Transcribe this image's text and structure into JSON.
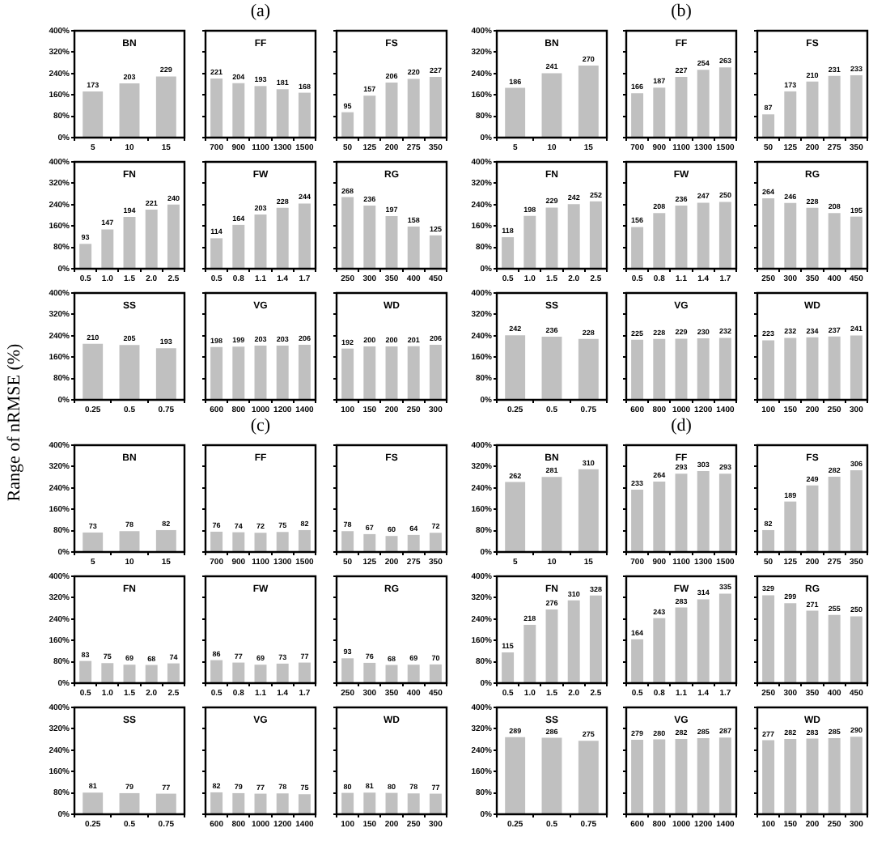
{
  "chart_data": [
    {
      "type": "bar",
      "title": "BN",
      "categories": [
        "5",
        "10",
        "15"
      ],
      "values": [
        173,
        203,
        229
      ],
      "color": "#c0c0c0",
      "data_labels": true,
      "ylim": [
        0,
        400
      ],
      "yticks": [
        {
          "value": 0,
          "label": "0%"
        },
        {
          "value": 80,
          "label": "80%"
        },
        {
          "value": 160,
          "label": "160%"
        },
        {
          "value": 240,
          "label": "240%"
        },
        {
          "value": 320,
          "label": "320%"
        },
        {
          "value": 400,
          "label": "400%"
        }
      ]
    },
    {
      "type": "bar",
      "title": "FF",
      "annotations": [
        "(a)"
      ],
      "categories": [
        "700",
        "900",
        "1100",
        "1300",
        "1500"
      ],
      "values": [
        221,
        204,
        193,
        181,
        168
      ],
      "color": "#c0c0c0",
      "data_labels": true,
      "tick_labels": "x",
      "ylim": [
        0,
        400
      ],
      "yticks": [
        {
          "value": 0,
          "label": null
        },
        {
          "value": 80,
          "label": null
        },
        {
          "value": 160,
          "label": null
        },
        {
          "value": 240,
          "label": null
        },
        {
          "value": 320,
          "label": null
        },
        {
          "value": 400,
          "label": null
        }
      ]
    },
    {
      "type": "bar",
      "title": "FS",
      "categories": [
        "50",
        "125",
        "200",
        "275",
        "350"
      ],
      "values": [
        95,
        157,
        206,
        220,
        227
      ],
      "color": "#c0c0c0",
      "data_labels": true,
      "tick_labels": "x",
      "ylim": [
        0,
        400
      ],
      "yticks": [
        {
          "value": 0,
          "label": null
        },
        {
          "value": 80,
          "label": null
        },
        {
          "value": 160,
          "label": null
        },
        {
          "value": 240,
          "label": null
        },
        {
          "value": 320,
          "label": null
        },
        {
          "value": 400,
          "label": null
        }
      ]
    },
    {
      "type": "bar",
      "title": "FN",
      "categories": [
        "0.5",
        "1.0",
        "1.5",
        "2.0",
        "2.5"
      ],
      "values": [
        93,
        147,
        194,
        221,
        240
      ],
      "color": "#c0c0c0",
      "data_labels": true,
      "ylim": [
        0,
        400
      ],
      "yticks": [
        {
          "value": 0,
          "label": "0%"
        },
        {
          "value": 80,
          "label": "80%"
        },
        {
          "value": 160,
          "label": "160%"
        },
        {
          "value": 240,
          "label": "240%"
        },
        {
          "value": 320,
          "label": "320%"
        },
        {
          "value": 400,
          "label": "400%"
        }
      ]
    },
    {
      "type": "bar",
      "title": "FW",
      "categories": [
        "0.5",
        "0.8",
        "1.1",
        "1.4",
        "1.7"
      ],
      "values": [
        114,
        164,
        203,
        228,
        244
      ],
      "color": "#c0c0c0",
      "data_labels": true,
      "tick_labels": "x",
      "ylim": [
        0,
        400
      ],
      "yticks": [
        {
          "value": 0,
          "label": null
        },
        {
          "value": 80,
          "label": null
        },
        {
          "value": 160,
          "label": null
        },
        {
          "value": 240,
          "label": null
        },
        {
          "value": 320,
          "label": null
        },
        {
          "value": 400,
          "label": null
        }
      ]
    },
    {
      "type": "bar",
      "title": "RG",
      "categories": [
        "250",
        "300",
        "350",
        "400",
        "450"
      ],
      "values": [
        268,
        236,
        197,
        158,
        125
      ],
      "color": "#c0c0c0",
      "data_labels": true,
      "tick_labels": "x",
      "ylim": [
        0,
        400
      ],
      "yticks": [
        {
          "value": 0,
          "label": null
        },
        {
          "value": 80,
          "label": null
        },
        {
          "value": 160,
          "label": null
        },
        {
          "value": 240,
          "label": null
        },
        {
          "value": 320,
          "label": null
        },
        {
          "value": 400,
          "label": null
        }
      ]
    },
    {
      "type": "bar",
      "title": "SS",
      "categories": [
        "0.25",
        "0.5",
        "0.75"
      ],
      "values": [
        210,
        205,
        193
      ],
      "color": "#c0c0c0",
      "data_labels": true,
      "ylim": [
        0,
        400
      ],
      "yticks": [
        {
          "value": 0,
          "label": "0%"
        },
        {
          "value": 80,
          "label": "80%"
        },
        {
          "value": 160,
          "label": "160%"
        },
        {
          "value": 240,
          "label": "240%"
        },
        {
          "value": 320,
          "label": "320%"
        },
        {
          "value": 400,
          "label": "400%"
        }
      ]
    },
    {
      "type": "bar",
      "title": "VG",
      "categories": [
        "600",
        "800",
        "1000",
        "1200",
        "1400"
      ],
      "values": [
        198,
        199,
        203,
        203,
        206
      ],
      "color": "#c0c0c0",
      "data_labels": true,
      "tick_labels": "x",
      "ylim": [
        0,
        400
      ],
      "yticks": [
        {
          "value": 0,
          "label": null
        },
        {
          "value": 80,
          "label": null
        },
        {
          "value": 160,
          "label": null
        },
        {
          "value": 240,
          "label": null
        },
        {
          "value": 320,
          "label": null
        },
        {
          "value": 400,
          "label": null
        }
      ]
    },
    {
      "type": "bar",
      "title": "WD",
      "categories": [
        "100",
        "150",
        "200",
        "250",
        "300"
      ],
      "values": [
        192,
        200,
        200,
        201,
        206
      ],
      "color": "#c0c0c0",
      "data_labels": true,
      "tick_labels": "x",
      "ylim": [
        0,
        400
      ],
      "yticks": [
        {
          "value": 0,
          "label": null
        },
        {
          "value": 80,
          "label": null
        },
        {
          "value": 160,
          "label": null
        },
        {
          "value": 240,
          "label": null
        },
        {
          "value": 320,
          "label": null
        },
        {
          "value": 400,
          "label": null
        }
      ]
    },
    {
      "type": "bar",
      "title": "BN",
      "categories": [
        "5",
        "10",
        "15"
      ],
      "values": [
        186,
        241,
        270
      ],
      "color": "#c0c0c0",
      "data_labels": true,
      "ylim": [
        0,
        400
      ],
      "yticks": [
        {
          "value": 0,
          "label": "0%"
        },
        {
          "value": 80,
          "label": "80%"
        },
        {
          "value": 160,
          "label": "160%"
        },
        {
          "value": 240,
          "label": "240%"
        },
        {
          "value": 320,
          "label": "320%"
        },
        {
          "value": 400,
          "label": "400%"
        }
      ]
    },
    {
      "type": "bar",
      "title": "FF",
      "annotations": [
        "(b)"
      ],
      "categories": [
        "700",
        "900",
        "1100",
        "1300",
        "1500"
      ],
      "values": [
        166,
        187,
        227,
        254,
        263
      ],
      "color": "#c0c0c0",
      "data_labels": true,
      "tick_labels": "x",
      "ylim": [
        0,
        400
      ],
      "yticks": [
        {
          "value": 0,
          "label": null
        },
        {
          "value": 80,
          "label": null
        },
        {
          "value": 160,
          "label": null
        },
        {
          "value": 240,
          "label": null
        },
        {
          "value": 320,
          "label": null
        },
        {
          "value": 400,
          "label": null
        }
      ]
    },
    {
      "type": "bar",
      "title": "FS",
      "categories": [
        "50",
        "125",
        "200",
        "275",
        "350"
      ],
      "values": [
        87,
        173,
        210,
        231,
        233
      ],
      "color": "#c0c0c0",
      "data_labels": true,
      "tick_labels": "x",
      "ylim": [
        0,
        400
      ],
      "yticks": [
        {
          "value": 0,
          "label": null
        },
        {
          "value": 80,
          "label": null
        },
        {
          "value": 160,
          "label": null
        },
        {
          "value": 240,
          "label": null
        },
        {
          "value": 320,
          "label": null
        },
        {
          "value": 400,
          "label": null
        }
      ]
    },
    {
      "type": "bar",
      "title": "FN",
      "categories": [
        "0.5",
        "1.0",
        "1.5",
        "2.0",
        "2.5"
      ],
      "values": [
        118,
        198,
        229,
        242,
        252
      ],
      "color": "#c0c0c0",
      "data_labels": true,
      "ylim": [
        0,
        400
      ],
      "yticks": [
        {
          "value": 0,
          "label": "0%"
        },
        {
          "value": 80,
          "label": "80%"
        },
        {
          "value": 160,
          "label": "160%"
        },
        {
          "value": 240,
          "label": "240%"
        },
        {
          "value": 320,
          "label": "320%"
        },
        {
          "value": 400,
          "label": "400%"
        }
      ]
    },
    {
      "type": "bar",
      "title": "FW",
      "categories": [
        "0.5",
        "0.8",
        "1.1",
        "1.4",
        "1.7"
      ],
      "values": [
        156,
        208,
        236,
        247,
        250
      ],
      "color": "#c0c0c0",
      "data_labels": true,
      "tick_labels": "x",
      "ylim": [
        0,
        400
      ],
      "yticks": [
        {
          "value": 0,
          "label": null
        },
        {
          "value": 80,
          "label": null
        },
        {
          "value": 160,
          "label": null
        },
        {
          "value": 240,
          "label": null
        },
        {
          "value": 320,
          "label": null
        },
        {
          "value": 400,
          "label": null
        }
      ]
    },
    {
      "type": "bar",
      "title": "RG",
      "categories": [
        "250",
        "300",
        "350",
        "400",
        "450"
      ],
      "values": [
        264,
        246,
        228,
        208,
        195
      ],
      "color": "#c0c0c0",
      "data_labels": true,
      "tick_labels": "x",
      "ylim": [
        0,
        400
      ],
      "yticks": [
        {
          "value": 0,
          "label": null
        },
        {
          "value": 80,
          "label": null
        },
        {
          "value": 160,
          "label": null
        },
        {
          "value": 240,
          "label": null
        },
        {
          "value": 320,
          "label": null
        },
        {
          "value": 400,
          "label": null
        }
      ]
    },
    {
      "type": "bar",
      "title": "SS",
      "categories": [
        "0.25",
        "0.5",
        "0.75"
      ],
      "values": [
        242,
        236,
        228
      ],
      "color": "#c0c0c0",
      "data_labels": true,
      "ylim": [
        0,
        400
      ],
      "yticks": [
        {
          "value": 0,
          "label": "0%"
        },
        {
          "value": 80,
          "label": "80%"
        },
        {
          "value": 160,
          "label": "160%"
        },
        {
          "value": 240,
          "label": "240%"
        },
        {
          "value": 320,
          "label": "320%"
        },
        {
          "value": 400,
          "label": "400%"
        }
      ]
    },
    {
      "type": "bar",
      "title": "VG",
      "categories": [
        "600",
        "800",
        "1000",
        "1200",
        "1400"
      ],
      "values": [
        225,
        228,
        229,
        230,
        232
      ],
      "color": "#c0c0c0",
      "data_labels": true,
      "tick_labels": "x",
      "ylim": [
        0,
        400
      ],
      "yticks": [
        {
          "value": 0,
          "label": null
        },
        {
          "value": 80,
          "label": null
        },
        {
          "value": 160,
          "label": null
        },
        {
          "value": 240,
          "label": null
        },
        {
          "value": 320,
          "label": null
        },
        {
          "value": 400,
          "label": null
        }
      ]
    },
    {
      "type": "bar",
      "title": "WD",
      "categories": [
        "100",
        "150",
        "200",
        "250",
        "300"
      ],
      "values": [
        223,
        232,
        234,
        237,
        241
      ],
      "color": "#c0c0c0",
      "data_labels": true,
      "tick_labels": "x",
      "ylim": [
        0,
        400
      ],
      "yticks": [
        {
          "value": 0,
          "label": null
        },
        {
          "value": 80,
          "label": null
        },
        {
          "value": 160,
          "label": null
        },
        {
          "value": 240,
          "label": null
        },
        {
          "value": 320,
          "label": null
        },
        {
          "value": 400,
          "label": null
        }
      ]
    },
    {
      "type": "bar",
      "title": "BN",
      "ylabel": "Range of nRMSE (%)",
      "categories": [
        "5",
        "10",
        "15"
      ],
      "values": [
        73,
        78,
        82
      ],
      "color": "#c0c0c0",
      "data_labels": true,
      "ylim": [
        0,
        400
      ],
      "yticks": [
        {
          "value": 0,
          "label": "0%"
        },
        {
          "value": 80,
          "label": "80%"
        },
        {
          "value": 160,
          "label": "160%"
        },
        {
          "value": 240,
          "label": "240%"
        },
        {
          "value": 320,
          "label": "320%"
        },
        {
          "value": 400,
          "label": "400%"
        }
      ]
    },
    {
      "type": "bar",
      "title": "FF",
      "annotations": [
        "(c)"
      ],
      "categories": [
        "700",
        "900",
        "1100",
        "1300",
        "1500"
      ],
      "values": [
        76,
        74,
        72,
        75,
        82
      ],
      "color": "#c0c0c0",
      "data_labels": true,
      "tick_labels": "x",
      "ylim": [
        0,
        400
      ],
      "yticks": [
        {
          "value": 0,
          "label": null
        },
        {
          "value": 80,
          "label": null
        },
        {
          "value": 160,
          "label": null
        },
        {
          "value": 240,
          "label": null
        },
        {
          "value": 320,
          "label": null
        },
        {
          "value": 400,
          "label": null
        }
      ]
    },
    {
      "type": "bar",
      "title": "FS",
      "categories": [
        "50",
        "125",
        "200",
        "275",
        "350"
      ],
      "values": [
        78,
        67,
        60,
        64,
        72
      ],
      "color": "#c0c0c0",
      "data_labels": true,
      "tick_labels": "x",
      "ylim": [
        0,
        400
      ],
      "yticks": [
        {
          "value": 0,
          "label": null
        },
        {
          "value": 80,
          "label": null
        },
        {
          "value": 160,
          "label": null
        },
        {
          "value": 240,
          "label": null
        },
        {
          "value": 320,
          "label": null
        },
        {
          "value": 400,
          "label": null
        }
      ]
    },
    {
      "type": "bar",
      "title": "FN",
      "categories": [
        "0.5",
        "1.0",
        "1.5",
        "2.0",
        "2.5"
      ],
      "values": [
        83,
        75,
        69,
        68,
        74
      ],
      "color": "#c0c0c0",
      "data_labels": true,
      "ylim": [
        0,
        400
      ],
      "yticks": [
        {
          "value": 0,
          "label": "0%"
        },
        {
          "value": 80,
          "label": "80%"
        },
        {
          "value": 160,
          "label": "160%"
        },
        {
          "value": 240,
          "label": "240%"
        },
        {
          "value": 320,
          "label": "320%"
        },
        {
          "value": 400,
          "label": "400%"
        }
      ]
    },
    {
      "type": "bar",
      "title": "FW",
      "categories": [
        "0.5",
        "0.8",
        "1.1",
        "1.4",
        "1.7"
      ],
      "values": [
        86,
        77,
        69,
        73,
        77
      ],
      "color": "#c0c0c0",
      "data_labels": true,
      "tick_labels": "x",
      "ylim": [
        0,
        400
      ],
      "yticks": [
        {
          "value": 0,
          "label": null
        },
        {
          "value": 80,
          "label": null
        },
        {
          "value": 160,
          "label": null
        },
        {
          "value": 240,
          "label": null
        },
        {
          "value": 320,
          "label": null
        },
        {
          "value": 400,
          "label": null
        }
      ]
    },
    {
      "type": "bar",
      "title": "RG",
      "categories": [
        "250",
        "300",
        "350",
        "400",
        "450"
      ],
      "values": [
        93,
        76,
        68,
        69,
        70
      ],
      "color": "#c0c0c0",
      "data_labels": true,
      "tick_labels": "x",
      "ylim": [
        0,
        400
      ],
      "yticks": [
        {
          "value": 0,
          "label": null
        },
        {
          "value": 80,
          "label": null
        },
        {
          "value": 160,
          "label": null
        },
        {
          "value": 240,
          "label": null
        },
        {
          "value": 320,
          "label": null
        },
        {
          "value": 400,
          "label": null
        }
      ]
    },
    {
      "type": "bar",
      "title": "SS",
      "categories": [
        "0.25",
        "0.5",
        "0.75"
      ],
      "values": [
        81,
        79,
        77
      ],
      "color": "#c0c0c0",
      "data_labels": true,
      "ylim": [
        0,
        400
      ],
      "yticks": [
        {
          "value": 0,
          "label": "0%"
        },
        {
          "value": 80,
          "label": "80%"
        },
        {
          "value": 160,
          "label": "160%"
        },
        {
          "value": 240,
          "label": "240%"
        },
        {
          "value": 320,
          "label": "320%"
        },
        {
          "value": 400,
          "label": "400%"
        }
      ]
    },
    {
      "type": "bar",
      "title": "VG",
      "categories": [
        "600",
        "800",
        "1000",
        "1200",
        "1400"
      ],
      "values": [
        82,
        79,
        77,
        78,
        75
      ],
      "color": "#c0c0c0",
      "data_labels": true,
      "tick_labels": "x",
      "ylim": [
        0,
        400
      ],
      "yticks": [
        {
          "value": 0,
          "label": null
        },
        {
          "value": 80,
          "label": null
        },
        {
          "value": 160,
          "label": null
        },
        {
          "value": 240,
          "label": null
        },
        {
          "value": 320,
          "label": null
        },
        {
          "value": 400,
          "label": null
        }
      ]
    },
    {
      "type": "bar",
      "title": "WD",
      "categories": [
        "100",
        "150",
        "200",
        "250",
        "300"
      ],
      "values": [
        80,
        81,
        80,
        78,
        77
      ],
      "color": "#c0c0c0",
      "data_labels": true,
      "tick_labels": "x",
      "ylim": [
        0,
        400
      ],
      "yticks": [
        {
          "value": 0,
          "label": null
        },
        {
          "value": 80,
          "label": null
        },
        {
          "value": 160,
          "label": null
        },
        {
          "value": 240,
          "label": null
        },
        {
          "value": 320,
          "label": null
        },
        {
          "value": 400,
          "label": null
        }
      ]
    },
    {
      "type": "bar",
      "title": "BN",
      "categories": [
        "5",
        "10",
        "15"
      ],
      "values": [
        262,
        281,
        310
      ],
      "color": "#c0c0c0",
      "data_labels": true,
      "ylim": [
        0,
        400
      ],
      "yticks": [
        {
          "value": 0,
          "label": "0%"
        },
        {
          "value": 80,
          "label": "80%"
        },
        {
          "value": 160,
          "label": "160%"
        },
        {
          "value": 240,
          "label": "240%"
        },
        {
          "value": 320,
          "label": "320%"
        },
        {
          "value": 400,
          "label": "400%"
        }
      ]
    },
    {
      "type": "bar",
      "title": "FF",
      "annotations": [
        "(d)"
      ],
      "categories": [
        "700",
        "900",
        "1100",
        "1300",
        "1500"
      ],
      "values": [
        233,
        264,
        293,
        303,
        293
      ],
      "color": "#c0c0c0",
      "data_labels": true,
      "tick_labels": "x",
      "ylim": [
        0,
        400
      ],
      "yticks": [
        {
          "value": 0,
          "label": null
        },
        {
          "value": 80,
          "label": null
        },
        {
          "value": 160,
          "label": null
        },
        {
          "value": 240,
          "label": null
        },
        {
          "value": 320,
          "label": null
        },
        {
          "value": 400,
          "label": null
        }
      ]
    },
    {
      "type": "bar",
      "title": "FS",
      "categories": [
        "50",
        "125",
        "200",
        "275",
        "350"
      ],
      "values": [
        82,
        189,
        249,
        282,
        306
      ],
      "color": "#c0c0c0",
      "data_labels": true,
      "tick_labels": "x",
      "ylim": [
        0,
        400
      ],
      "yticks": [
        {
          "value": 0,
          "label": null
        },
        {
          "value": 80,
          "label": null
        },
        {
          "value": 160,
          "label": null
        },
        {
          "value": 240,
          "label": null
        },
        {
          "value": 320,
          "label": null
        },
        {
          "value": 400,
          "label": null
        }
      ]
    },
    {
      "type": "bar",
      "title": "FN",
      "categories": [
        "0.5",
        "1.0",
        "1.5",
        "2.0",
        "2.5"
      ],
      "values": [
        115,
        218,
        276,
        310,
        328
      ],
      "color": "#c0c0c0",
      "data_labels": true,
      "ylim": [
        0,
        400
      ],
      "yticks": [
        {
          "value": 0,
          "label": "0%"
        },
        {
          "value": 80,
          "label": "80%"
        },
        {
          "value": 160,
          "label": "160%"
        },
        {
          "value": 240,
          "label": "240%"
        },
        {
          "value": 320,
          "label": "320%"
        },
        {
          "value": 400,
          "label": "400%"
        }
      ]
    },
    {
      "type": "bar",
      "title": "FW",
      "categories": [
        "0.5",
        "0.8",
        "1.1",
        "1.4",
        "1.7"
      ],
      "values": [
        164,
        243,
        283,
        314,
        335
      ],
      "color": "#c0c0c0",
      "data_labels": true,
      "tick_labels": "x",
      "ylim": [
        0,
        400
      ],
      "yticks": [
        {
          "value": 0,
          "label": null
        },
        {
          "value": 80,
          "label": null
        },
        {
          "value": 160,
          "label": null
        },
        {
          "value": 240,
          "label": null
        },
        {
          "value": 320,
          "label": null
        },
        {
          "value": 400,
          "label": null
        }
      ]
    },
    {
      "type": "bar",
      "title": "RG",
      "categories": [
        "250",
        "300",
        "350",
        "400",
        "450"
      ],
      "values": [
        329,
        299,
        271,
        255,
        250
      ],
      "color": "#c0c0c0",
      "data_labels": true,
      "tick_labels": "x",
      "ylim": [
        0,
        400
      ],
      "yticks": [
        {
          "value": 0,
          "label": null
        },
        {
          "value": 80,
          "label": null
        },
        {
          "value": 160,
          "label": null
        },
        {
          "value": 240,
          "label": null
        },
        {
          "value": 320,
          "label": null
        },
        {
          "value": 400,
          "label": null
        }
      ]
    },
    {
      "type": "bar",
      "title": "SS",
      "categories": [
        "0.25",
        "0.5",
        "0.75"
      ],
      "values": [
        289,
        286,
        275
      ],
      "color": "#c0c0c0",
      "data_labels": true,
      "ylim": [
        0,
        400
      ],
      "yticks": [
        {
          "value": 0,
          "label": "0%"
        },
        {
          "value": 80,
          "label": "80%"
        },
        {
          "value": 160,
          "label": "160%"
        },
        {
          "value": 240,
          "label": "240%"
        },
        {
          "value": 320,
          "label": "320%"
        },
        {
          "value": 400,
          "label": "400%"
        }
      ]
    },
    {
      "type": "bar",
      "title": "VG",
      "categories": [
        "600",
        "800",
        "1000",
        "1200",
        "1400"
      ],
      "values": [
        279,
        280,
        282,
        285,
        287
      ],
      "color": "#c0c0c0",
      "data_labels": true,
      "tick_labels": "x",
      "ylim": [
        0,
        400
      ],
      "yticks": [
        {
          "value": 0,
          "label": null
        },
        {
          "value": 80,
          "label": null
        },
        {
          "value": 160,
          "label": null
        },
        {
          "value": 240,
          "label": null
        },
        {
          "value": 320,
          "label": null
        },
        {
          "value": 400,
          "label": null
        }
      ]
    },
    {
      "type": "bar",
      "title": "WD",
      "categories": [
        "100",
        "150",
        "200",
        "250",
        "300"
      ],
      "values": [
        277,
        282,
        283,
        285,
        290
      ],
      "color": "#c0c0c0",
      "data_labels": true,
      "tick_labels": "x",
      "ylim": [
        0,
        400
      ],
      "yticks": [
        {
          "value": 0,
          "label": null
        },
        {
          "value": 80,
          "label": null
        },
        {
          "value": 160,
          "label": null
        },
        {
          "value": 240,
          "label": null
        },
        {
          "value": 320,
          "label": null
        },
        {
          "value": 400,
          "label": null
        }
      ]
    }
  ]
}
